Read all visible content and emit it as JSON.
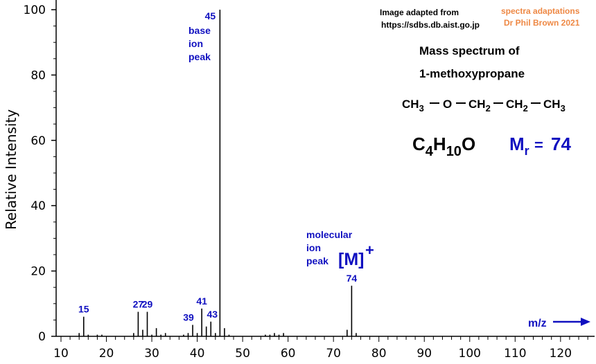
{
  "chart_data": {
    "type": "bar",
    "ylabel": "Relative Intensity",
    "xlabel": "m/z",
    "xlim": [
      10,
      127
    ],
    "ylim": [
      0,
      100
    ],
    "x_ticks": [
      10,
      20,
      30,
      40,
      50,
      60,
      70,
      80,
      90,
      100,
      110,
      120
    ],
    "y_ticks": [
      0,
      20,
      40,
      60,
      80,
      100
    ],
    "peaks": [
      {
        "mz": 14,
        "intensity": 1.0
      },
      {
        "mz": 15,
        "intensity": 6.0
      },
      {
        "mz": 16,
        "intensity": 0.5
      },
      {
        "mz": 18,
        "intensity": 0.5
      },
      {
        "mz": 19,
        "intensity": 0.5
      },
      {
        "mz": 26,
        "intensity": 1.0
      },
      {
        "mz": 27,
        "intensity": 7.5
      },
      {
        "mz": 28,
        "intensity": 2.0
      },
      {
        "mz": 29,
        "intensity": 7.5
      },
      {
        "mz": 30,
        "intensity": 0.5
      },
      {
        "mz": 31,
        "intensity": 2.5
      },
      {
        "mz": 32,
        "intensity": 0.5
      },
      {
        "mz": 33,
        "intensity": 1.0
      },
      {
        "mz": 37,
        "intensity": 0.5
      },
      {
        "mz": 38,
        "intensity": 1.0
      },
      {
        "mz": 39,
        "intensity": 3.5
      },
      {
        "mz": 40,
        "intensity": 1.0
      },
      {
        "mz": 41,
        "intensity": 8.5
      },
      {
        "mz": 42,
        "intensity": 3.0
      },
      {
        "mz": 43,
        "intensity": 4.5
      },
      {
        "mz": 44,
        "intensity": 1.0
      },
      {
        "mz": 45,
        "intensity": 100
      },
      {
        "mz": 46,
        "intensity": 2.5
      },
      {
        "mz": 47,
        "intensity": 0.5
      },
      {
        "mz": 55,
        "intensity": 0.5
      },
      {
        "mz": 56,
        "intensity": 0.5
      },
      {
        "mz": 57,
        "intensity": 1.0
      },
      {
        "mz": 58,
        "intensity": 0.5
      },
      {
        "mz": 59,
        "intensity": 1.0
      },
      {
        "mz": 73,
        "intensity": 2.0
      },
      {
        "mz": 74,
        "intensity": 15.5
      },
      {
        "mz": 75,
        "intensity": 1.0
      }
    ],
    "peak_labels": [
      {
        "mz": 15,
        "text": "15"
      },
      {
        "mz": 27,
        "text": "27"
      },
      {
        "mz": 29,
        "text": "29"
      },
      {
        "mz": 39,
        "text": "39"
      },
      {
        "mz": 41,
        "text": "41"
      },
      {
        "mz": 43,
        "text": "43"
      },
      {
        "mz": 45,
        "text": "45"
      },
      {
        "mz": 74,
        "text": "74"
      }
    ],
    "annotations": {
      "base_peak": [
        "base",
        "ion",
        "peak"
      ],
      "molecular_peak": [
        "molecular",
        "ion",
        "peak"
      ],
      "molecular_ion": "[M]",
      "molecular_ion_charge": "+"
    }
  },
  "credits": {
    "line1": "Image adapted from",
    "line2": "https://sdbs.db.aist.go.jp",
    "author1": "spectra adaptations",
    "author2": "Dr Phil Brown  2021"
  },
  "title": {
    "line1": "Mass spectrum of",
    "line2": "1-methoxypropane"
  },
  "structure": {
    "ch3": "CH",
    "sub3": "3",
    "o": "O",
    "ch2": "CH",
    "sub2": "2",
    "ch2b": "CH",
    "sub2b": "2",
    "ch3b": "CH",
    "sub3b": "3"
  },
  "formula": {
    "c": "C",
    "c_sub": "4",
    "h": "H",
    "h_sub": "10",
    "o": "O",
    "mr_m": "M",
    "mr_sub": "r",
    "mr_eq": "=",
    "mr_value": "74"
  },
  "colors": {
    "label_blue": "#1010c0",
    "credit_orange": "#ee8844",
    "bars": "#000000"
  }
}
